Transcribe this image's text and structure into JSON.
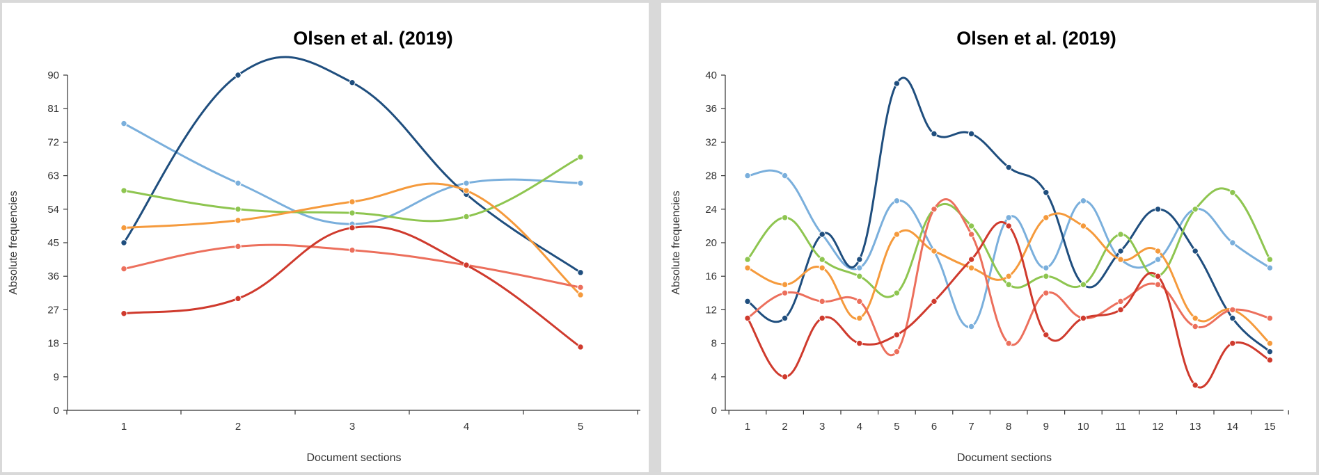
{
  "chart_data": [
    {
      "type": "line",
      "title": "Olsen et al. (2019)",
      "xlabel": "Document sections",
      "ylabel": "Absolute frequencies",
      "ylim": [
        0,
        90
      ],
      "yticks": [
        0,
        9,
        18,
        27,
        36,
        45,
        54,
        63,
        72,
        81,
        90
      ],
      "x": [
        1,
        2,
        3,
        4,
        5
      ],
      "grid": false,
      "series": [
        {
          "color": "#7aafdc",
          "values": [
            77,
            61,
            50,
            61,
            61
          ]
        },
        {
          "color": "#1f4e7e",
          "values": [
            45,
            90,
            88,
            58,
            37
          ]
        },
        {
          "color": "#8ec550",
          "values": [
            59,
            54,
            53,
            52,
            68
          ]
        },
        {
          "color": "#f59a3c",
          "values": [
            49,
            51,
            56,
            59,
            31
          ]
        },
        {
          "color": "#ec6f5c",
          "values": [
            38,
            44,
            43,
            39,
            33
          ]
        },
        {
          "color": "#cf3a2d",
          "values": [
            26,
            30,
            49,
            39,
            17
          ]
        }
      ]
    },
    {
      "type": "line",
      "title": "Olsen et al. (2019)",
      "xlabel": "Document sections",
      "ylabel": "Absolute frequencies",
      "ylim": [
        0,
        40
      ],
      "yticks": [
        0,
        4,
        8,
        12,
        16,
        20,
        24,
        28,
        32,
        36,
        40
      ],
      "x": [
        1,
        2,
        3,
        4,
        5,
        6,
        7,
        8,
        9,
        10,
        11,
        12,
        13,
        14,
        15
      ],
      "grid": false,
      "series": [
        {
          "color": "#7aafdc",
          "values": [
            28,
            28,
            21,
            17,
            25,
            19,
            10,
            23,
            17,
            25,
            18,
            18,
            24,
            20,
            17
          ]
        },
        {
          "color": "#1f4e7e",
          "values": [
            13,
            11,
            21,
            18,
            39,
            33,
            33,
            29,
            26,
            15,
            19,
            24,
            19,
            11,
            7
          ]
        },
        {
          "color": "#8ec550",
          "values": [
            18,
            23,
            18,
            16,
            14,
            24,
            22,
            15,
            16,
            15,
            21,
            16,
            24,
            26,
            18
          ]
        },
        {
          "color": "#f59a3c",
          "values": [
            17,
            15,
            17,
            11,
            21,
            19,
            17,
            16,
            23,
            22,
            18,
            19,
            11,
            12,
            8
          ]
        },
        {
          "color": "#ec6f5c",
          "values": [
            11,
            14,
            13,
            13,
            7,
            24,
            21,
            8,
            14,
            11,
            13,
            15,
            10,
            12,
            11
          ]
        },
        {
          "color": "#cf3a2d",
          "values": [
            11,
            4,
            11,
            8,
            9,
            13,
            18,
            22,
            9,
            11,
            12,
            16,
            3,
            8,
            6
          ]
        }
      ]
    }
  ]
}
